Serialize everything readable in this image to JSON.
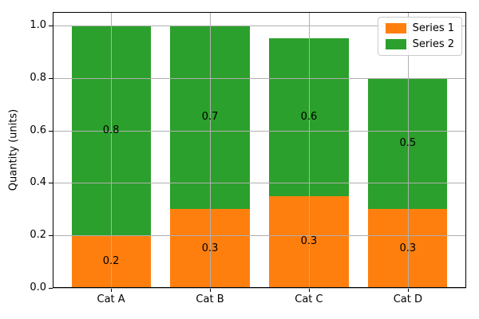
{
  "chart_data": {
    "type": "bar",
    "stacked": true,
    "title": "",
    "xlabel": "",
    "ylabel": "Quantity (units)",
    "categories": [
      "Cat A",
      "Cat B",
      "Cat C",
      "Cat D"
    ],
    "series": [
      {
        "name": "Series 1",
        "color": "#ff7f0e",
        "values": [
          0.2,
          0.3,
          0.35,
          0.3
        ],
        "labels": [
          "0.2",
          "0.3",
          "0.3",
          "0.3"
        ]
      },
      {
        "name": "Series 2",
        "color": "#2ca02c",
        "values": [
          0.8,
          0.7,
          0.6,
          0.5
        ],
        "labels": [
          "0.8",
          "0.7",
          "0.6",
          "0.5"
        ]
      }
    ],
    "yticks": [
      0.0,
      0.2,
      0.4,
      0.6,
      0.8,
      1.0
    ],
    "ytick_labels": [
      "0.0",
      "0.2",
      "0.4",
      "0.6",
      "0.8",
      "1.0"
    ],
    "ylim": [
      0.0,
      1.05
    ],
    "grid": true,
    "grid_color": "#b0b0b0",
    "axes_color": "#000000",
    "background_color": "#ffffff",
    "legend": {
      "position": "upper right",
      "entries": [
        "Series 1",
        "Series 2"
      ]
    }
  }
}
